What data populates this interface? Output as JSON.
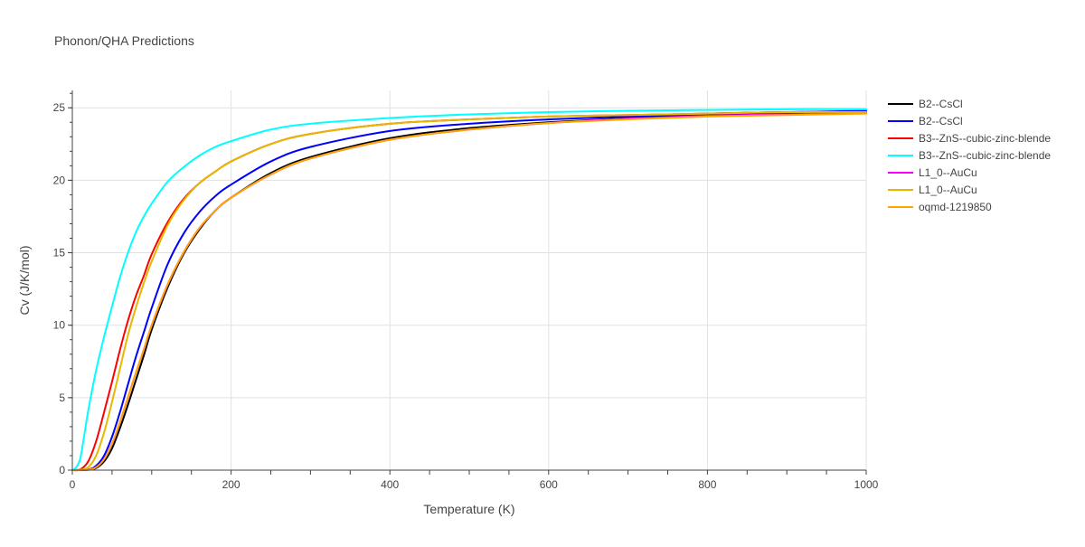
{
  "chart_data": {
    "type": "line",
    "title": "Phonon/QHA Predictions",
    "xlabel": "Temperature (K)",
    "ylabel": "Cv (J/K/mol)",
    "xlim": [
      0,
      1000
    ],
    "ylim": [
      0,
      26.2
    ],
    "xticks": [
      0,
      200,
      400,
      600,
      800,
      1000
    ],
    "yticks": [
      0,
      5,
      10,
      15,
      20,
      25
    ],
    "grid": true,
    "legend_position": "top-right",
    "series": [
      {
        "name": "B2--CsCl",
        "color": "#000000",
        "x": [
          0,
          20,
          30,
          40,
          50,
          60,
          70,
          80,
          90,
          100,
          120,
          140,
          160,
          180,
          200,
          250,
          300,
          400,
          500,
          600,
          700,
          800,
          900,
          1000
        ],
        "y": [
          0,
          0.02,
          0.15,
          0.6,
          1.5,
          2.9,
          4.5,
          6.2,
          7.9,
          9.7,
          12.6,
          14.9,
          16.6,
          17.9,
          18.8,
          20.5,
          21.6,
          22.9,
          23.6,
          24.0,
          24.3,
          24.5,
          24.6,
          24.7
        ]
      },
      {
        "name": "B2--CsCl",
        "color": "#0000ff",
        "x": [
          0,
          20,
          30,
          40,
          50,
          60,
          70,
          80,
          90,
          100,
          120,
          140,
          160,
          180,
          200,
          250,
          300,
          400,
          500,
          600,
          700,
          800,
          900,
          1000
        ],
        "y": [
          0,
          0.05,
          0.3,
          1.0,
          2.3,
          4.0,
          5.9,
          7.8,
          9.5,
          11.2,
          14.2,
          16.3,
          17.8,
          18.9,
          19.7,
          21.3,
          22.3,
          23.4,
          23.9,
          24.2,
          24.4,
          24.6,
          24.7,
          24.8
        ]
      },
      {
        "name": "B3--ZnS--cubic-zinc-blende",
        "color": "#ff0000",
        "x": [
          0,
          10,
          20,
          30,
          40,
          50,
          60,
          70,
          80,
          90,
          100,
          120,
          140,
          160,
          180,
          200,
          250,
          300,
          400,
          500,
          600,
          700,
          800,
          900,
          1000
        ],
        "y": [
          0,
          0.05,
          0.6,
          2.0,
          4.0,
          6.1,
          8.3,
          10.3,
          12.0,
          13.4,
          14.9,
          17.1,
          18.7,
          19.8,
          20.6,
          21.3,
          22.5,
          23.2,
          23.9,
          24.2,
          24.4,
          24.5,
          24.6,
          24.7,
          24.7
        ]
      },
      {
        "name": "B3--ZnS--cubic-zinc-blende",
        "color": "#00ffff",
        "x": [
          0,
          5,
          10,
          15,
          20,
          30,
          40,
          50,
          60,
          70,
          80,
          90,
          100,
          120,
          140,
          160,
          180,
          200,
          250,
          300,
          400,
          500,
          600,
          700,
          800,
          900,
          1000
        ],
        "y": [
          0,
          0.2,
          0.8,
          2.4,
          4.1,
          6.9,
          9.2,
          11.3,
          13.3,
          15.0,
          16.4,
          17.5,
          18.4,
          19.9,
          20.9,
          21.7,
          22.3,
          22.7,
          23.5,
          23.9,
          24.3,
          24.55,
          24.7,
          24.8,
          24.85,
          24.9,
          24.9
        ]
      },
      {
        "name": "L1_0--AuCu",
        "color": "#ff00ff",
        "x": [
          0,
          20,
          30,
          40,
          50,
          60,
          70,
          80,
          90,
          100,
          120,
          140,
          160,
          180,
          200,
          250,
          300,
          400,
          500,
          600,
          700,
          800,
          900,
          1000
        ],
        "y": [
          0,
          0.03,
          0.2,
          0.75,
          1.8,
          3.3,
          5.0,
          6.7,
          8.3,
          10.0,
          12.8,
          15.0,
          16.7,
          17.9,
          18.8,
          20.4,
          21.5,
          22.8,
          23.5,
          23.95,
          24.25,
          24.45,
          24.55,
          24.65
        ]
      },
      {
        "name": "L1_0--AuCu",
        "color": "#e6b800",
        "x": [
          0,
          10,
          20,
          30,
          40,
          50,
          60,
          70,
          80,
          90,
          100,
          120,
          140,
          160,
          180,
          200,
          250,
          300,
          400,
          500,
          600,
          700,
          800,
          900,
          1000
        ],
        "y": [
          0,
          0.02,
          0.2,
          1.0,
          2.6,
          4.7,
          7.0,
          9.3,
          11.2,
          12.9,
          14.4,
          16.9,
          18.6,
          19.8,
          20.6,
          21.3,
          22.5,
          23.2,
          23.9,
          24.2,
          24.4,
          24.5,
          24.6,
          24.7,
          24.7
        ]
      },
      {
        "name": "oqmd-1219850",
        "color": "#ffa500",
        "x": [
          0,
          20,
          30,
          40,
          50,
          60,
          70,
          80,
          90,
          100,
          120,
          140,
          160,
          180,
          200,
          250,
          300,
          400,
          500,
          600,
          700,
          800,
          900,
          1000
        ],
        "y": [
          0,
          0.03,
          0.2,
          0.75,
          1.8,
          3.3,
          5.0,
          6.7,
          8.3,
          10.0,
          12.8,
          15.0,
          16.7,
          17.9,
          18.8,
          20.4,
          21.5,
          22.8,
          23.5,
          23.95,
          24.2,
          24.4,
          24.5,
          24.6
        ]
      }
    ]
  }
}
